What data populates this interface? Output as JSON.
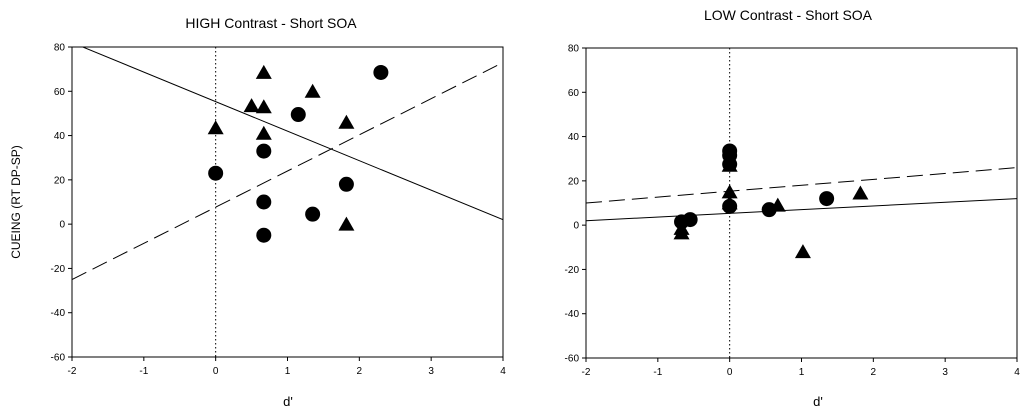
{
  "chart_data": [
    {
      "type": "scatter",
      "title": "HIGH Contrast - Short SOA",
      "xlabel": "d'",
      "ylabel": "CUEING (RT DP-SP)",
      "xlim": [
        -2,
        4
      ],
      "ylim": [
        -60,
        80
      ],
      "xticks": [
        "-2",
        "-1",
        "0",
        "1",
        "2",
        "3",
        "4"
      ],
      "yticks": [
        "-60",
        "-40",
        "-20",
        "0",
        "20",
        "40",
        "60",
        "80"
      ],
      "series": [
        {
          "name": "circles",
          "marker": "circle",
          "points": [
            [
              0,
              23
            ],
            [
              0.67,
              33
            ],
            [
              0.67,
              10
            ],
            [
              0.67,
              -5
            ],
            [
              1.15,
              49.5
            ],
            [
              1.35,
              4.5
            ],
            [
              1.82,
              18
            ],
            [
              2.3,
              68.5
            ]
          ]
        },
        {
          "name": "triangles",
          "marker": "triangle",
          "points": [
            [
              0,
              43
            ],
            [
              0.5,
              53
            ],
            [
              0.67,
              68
            ],
            [
              0.67,
              52.5
            ],
            [
              0.67,
              40.5
            ],
            [
              1.35,
              59.5
            ],
            [
              1.82,
              45.5
            ],
            [
              1.82,
              -0.5
            ]
          ]
        }
      ],
      "lines": [
        {
          "style": "solid",
          "from": [
            -2,
            82
          ],
          "to": [
            4,
            2
          ]
        },
        {
          "style": "dashed",
          "from": [
            -2,
            -25
          ],
          "to": [
            4,
            73
          ]
        }
      ],
      "vline": {
        "x": 0,
        "style": "dotted"
      }
    },
    {
      "type": "scatter",
      "title": "LOW Contrast - Short SOA",
      "xlabel": "d'",
      "ylabel": "",
      "xlim": [
        -2,
        4
      ],
      "ylim": [
        -60,
        80
      ],
      "xticks": [
        "-2",
        "-1",
        "0",
        "1",
        "2",
        "3",
        "4"
      ],
      "yticks": [
        "-60",
        "-40",
        "-20",
        "0",
        "20",
        "40",
        "60",
        "80"
      ],
      "series": [
        {
          "name": "circles",
          "marker": "circle",
          "points": [
            [
              -0.67,
              1.5
            ],
            [
              -0.55,
              2.5
            ],
            [
              0,
              33.5
            ],
            [
              0,
              31.5
            ],
            [
              0,
              27.5
            ],
            [
              0,
              8.5
            ],
            [
              0.55,
              7
            ],
            [
              1.35,
              12
            ]
          ]
        },
        {
          "name": "triangles",
          "marker": "triangle",
          "points": [
            [
              -0.67,
              -4
            ],
            [
              -0.67,
              -2
            ],
            [
              0,
              26.5
            ],
            [
              0,
              14.5
            ],
            [
              0,
              9.5
            ],
            [
              0.67,
              8.5
            ],
            [
              1.02,
              -12.5
            ],
            [
              1.82,
              14
            ]
          ]
        }
      ],
      "lines": [
        {
          "style": "solid",
          "from": [
            -2,
            2
          ],
          "to": [
            4,
            12
          ]
        },
        {
          "style": "dashed",
          "from": [
            -2,
            10
          ],
          "to": [
            4,
            26
          ]
        }
      ],
      "vline": {
        "x": 0,
        "style": "dotted"
      }
    }
  ]
}
